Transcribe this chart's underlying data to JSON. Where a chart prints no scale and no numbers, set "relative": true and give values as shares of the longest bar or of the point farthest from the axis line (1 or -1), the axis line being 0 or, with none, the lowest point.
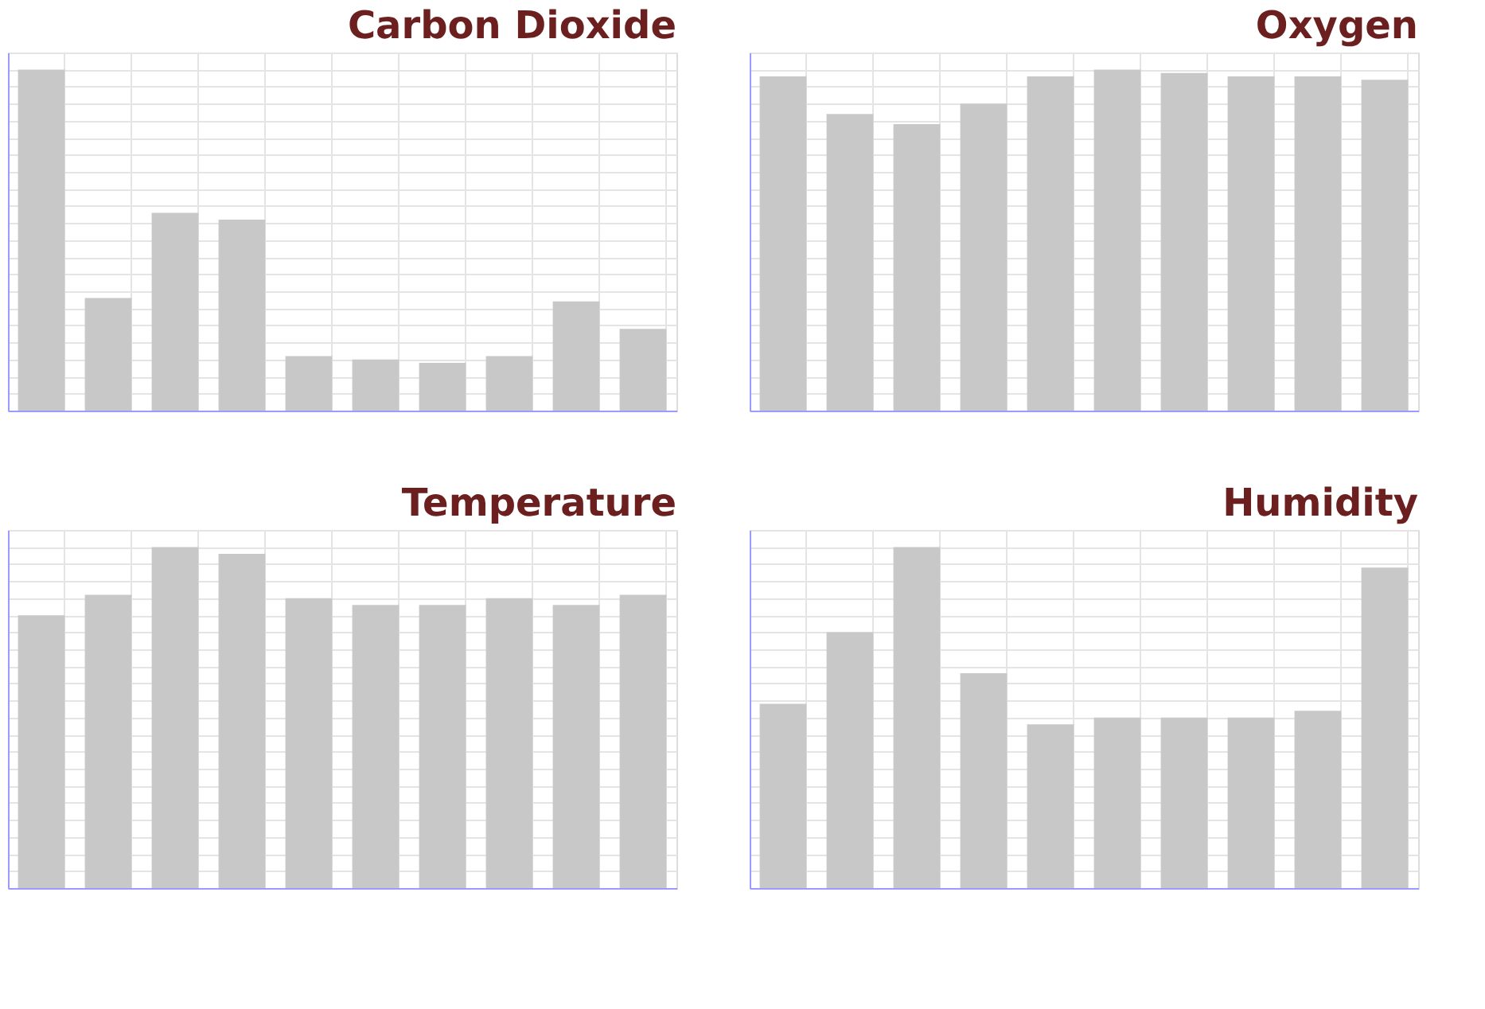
{
  "chart_data": [
    {
      "type": "bar",
      "title": "Carbon Dioxide",
      "relative": true,
      "grid": true,
      "tick_labels": false,
      "categories": [
        null,
        null,
        null,
        null,
        null,
        null,
        null,
        null,
        null,
        null
      ],
      "color": "#c8c8c8",
      "values": [
        1,
        0.33,
        0.58,
        0.56,
        0.16,
        0.15,
        0.14,
        0.16,
        0.32,
        0.24
      ]
    },
    {
      "type": "bar",
      "title": "Oxygen",
      "relative": true,
      "grid": true,
      "tick_labels": false,
      "categories": [
        null,
        null,
        null,
        null,
        null,
        null,
        null,
        null,
        null,
        null
      ],
      "color": "#c8c8c8",
      "values": [
        0.98,
        0.87,
        0.84,
        0.9,
        0.98,
        1,
        0.99,
        0.98,
        0.98,
        0.97
      ]
    },
    {
      "type": "bar",
      "title": "Temperature",
      "relative": true,
      "grid": true,
      "tick_labels": false,
      "categories": [
        null,
        null,
        null,
        null,
        null,
        null,
        null,
        null,
        null,
        null
      ],
      "color": "#c8c8c8",
      "values": [
        0.8,
        0.86,
        1,
        0.98,
        0.85,
        0.83,
        0.83,
        0.85,
        0.83,
        0.86
      ]
    },
    {
      "type": "bar",
      "title": "Humidity",
      "relative": true,
      "grid": true,
      "tick_labels": false,
      "categories": [
        null,
        null,
        null,
        null,
        null,
        null,
        null,
        null,
        null,
        null
      ],
      "color": "#c8c8c8",
      "values": [
        0.54,
        0.75,
        1,
        0.63,
        0.48,
        0.5,
        0.5,
        0.5,
        0.52,
        0.94
      ]
    }
  ]
}
